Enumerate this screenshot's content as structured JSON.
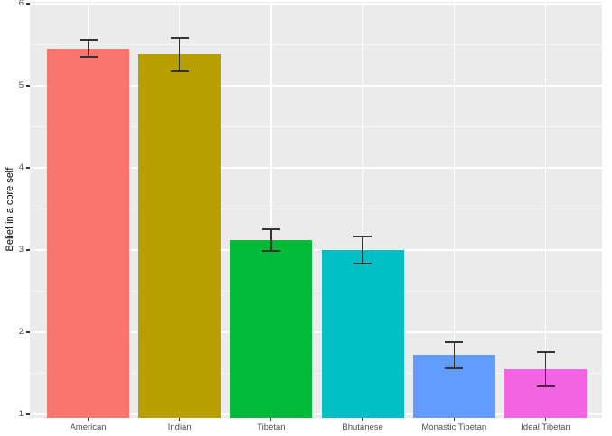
{
  "figure": {
    "background": "#FFFFFF",
    "panel_background": "#EBEBEB",
    "major_grid_color": "#FFFFFF",
    "minor_grid_color": "#F7F7F7",
    "axis_text_color": "#4D4D4D",
    "axis_title_color": "#000000",
    "errorbar_color": "#333333"
  },
  "chart_data": {
    "type": "bar",
    "title": "",
    "xlabel": "",
    "ylabel": "Belief in a core self",
    "categories": [
      "American",
      "Indian",
      "Tibetan",
      "Bhutanese",
      "Monastic Tibetan",
      "Ideal Tibetan"
    ],
    "values": [
      5.45,
      5.38,
      3.12,
      3.0,
      1.72,
      1.55
    ],
    "error_low": [
      5.35,
      5.18,
      2.99,
      2.83,
      1.56,
      1.34
    ],
    "error_high": [
      5.56,
      5.58,
      3.25,
      3.17,
      1.88,
      1.76
    ],
    "bar_colors": [
      "#F8766D",
      "#B79F00",
      "#00BA38",
      "#00BFC4",
      "#619CFF",
      "#F564E3"
    ],
    "ylim": [
      1,
      6
    ],
    "yticks": [
      1,
      2,
      3,
      4,
      5,
      6
    ],
    "yminor": [
      1.5,
      2.5,
      3.5,
      4.5,
      5.5
    ],
    "grid": true,
    "legend": "none",
    "style": "ggplot2"
  }
}
